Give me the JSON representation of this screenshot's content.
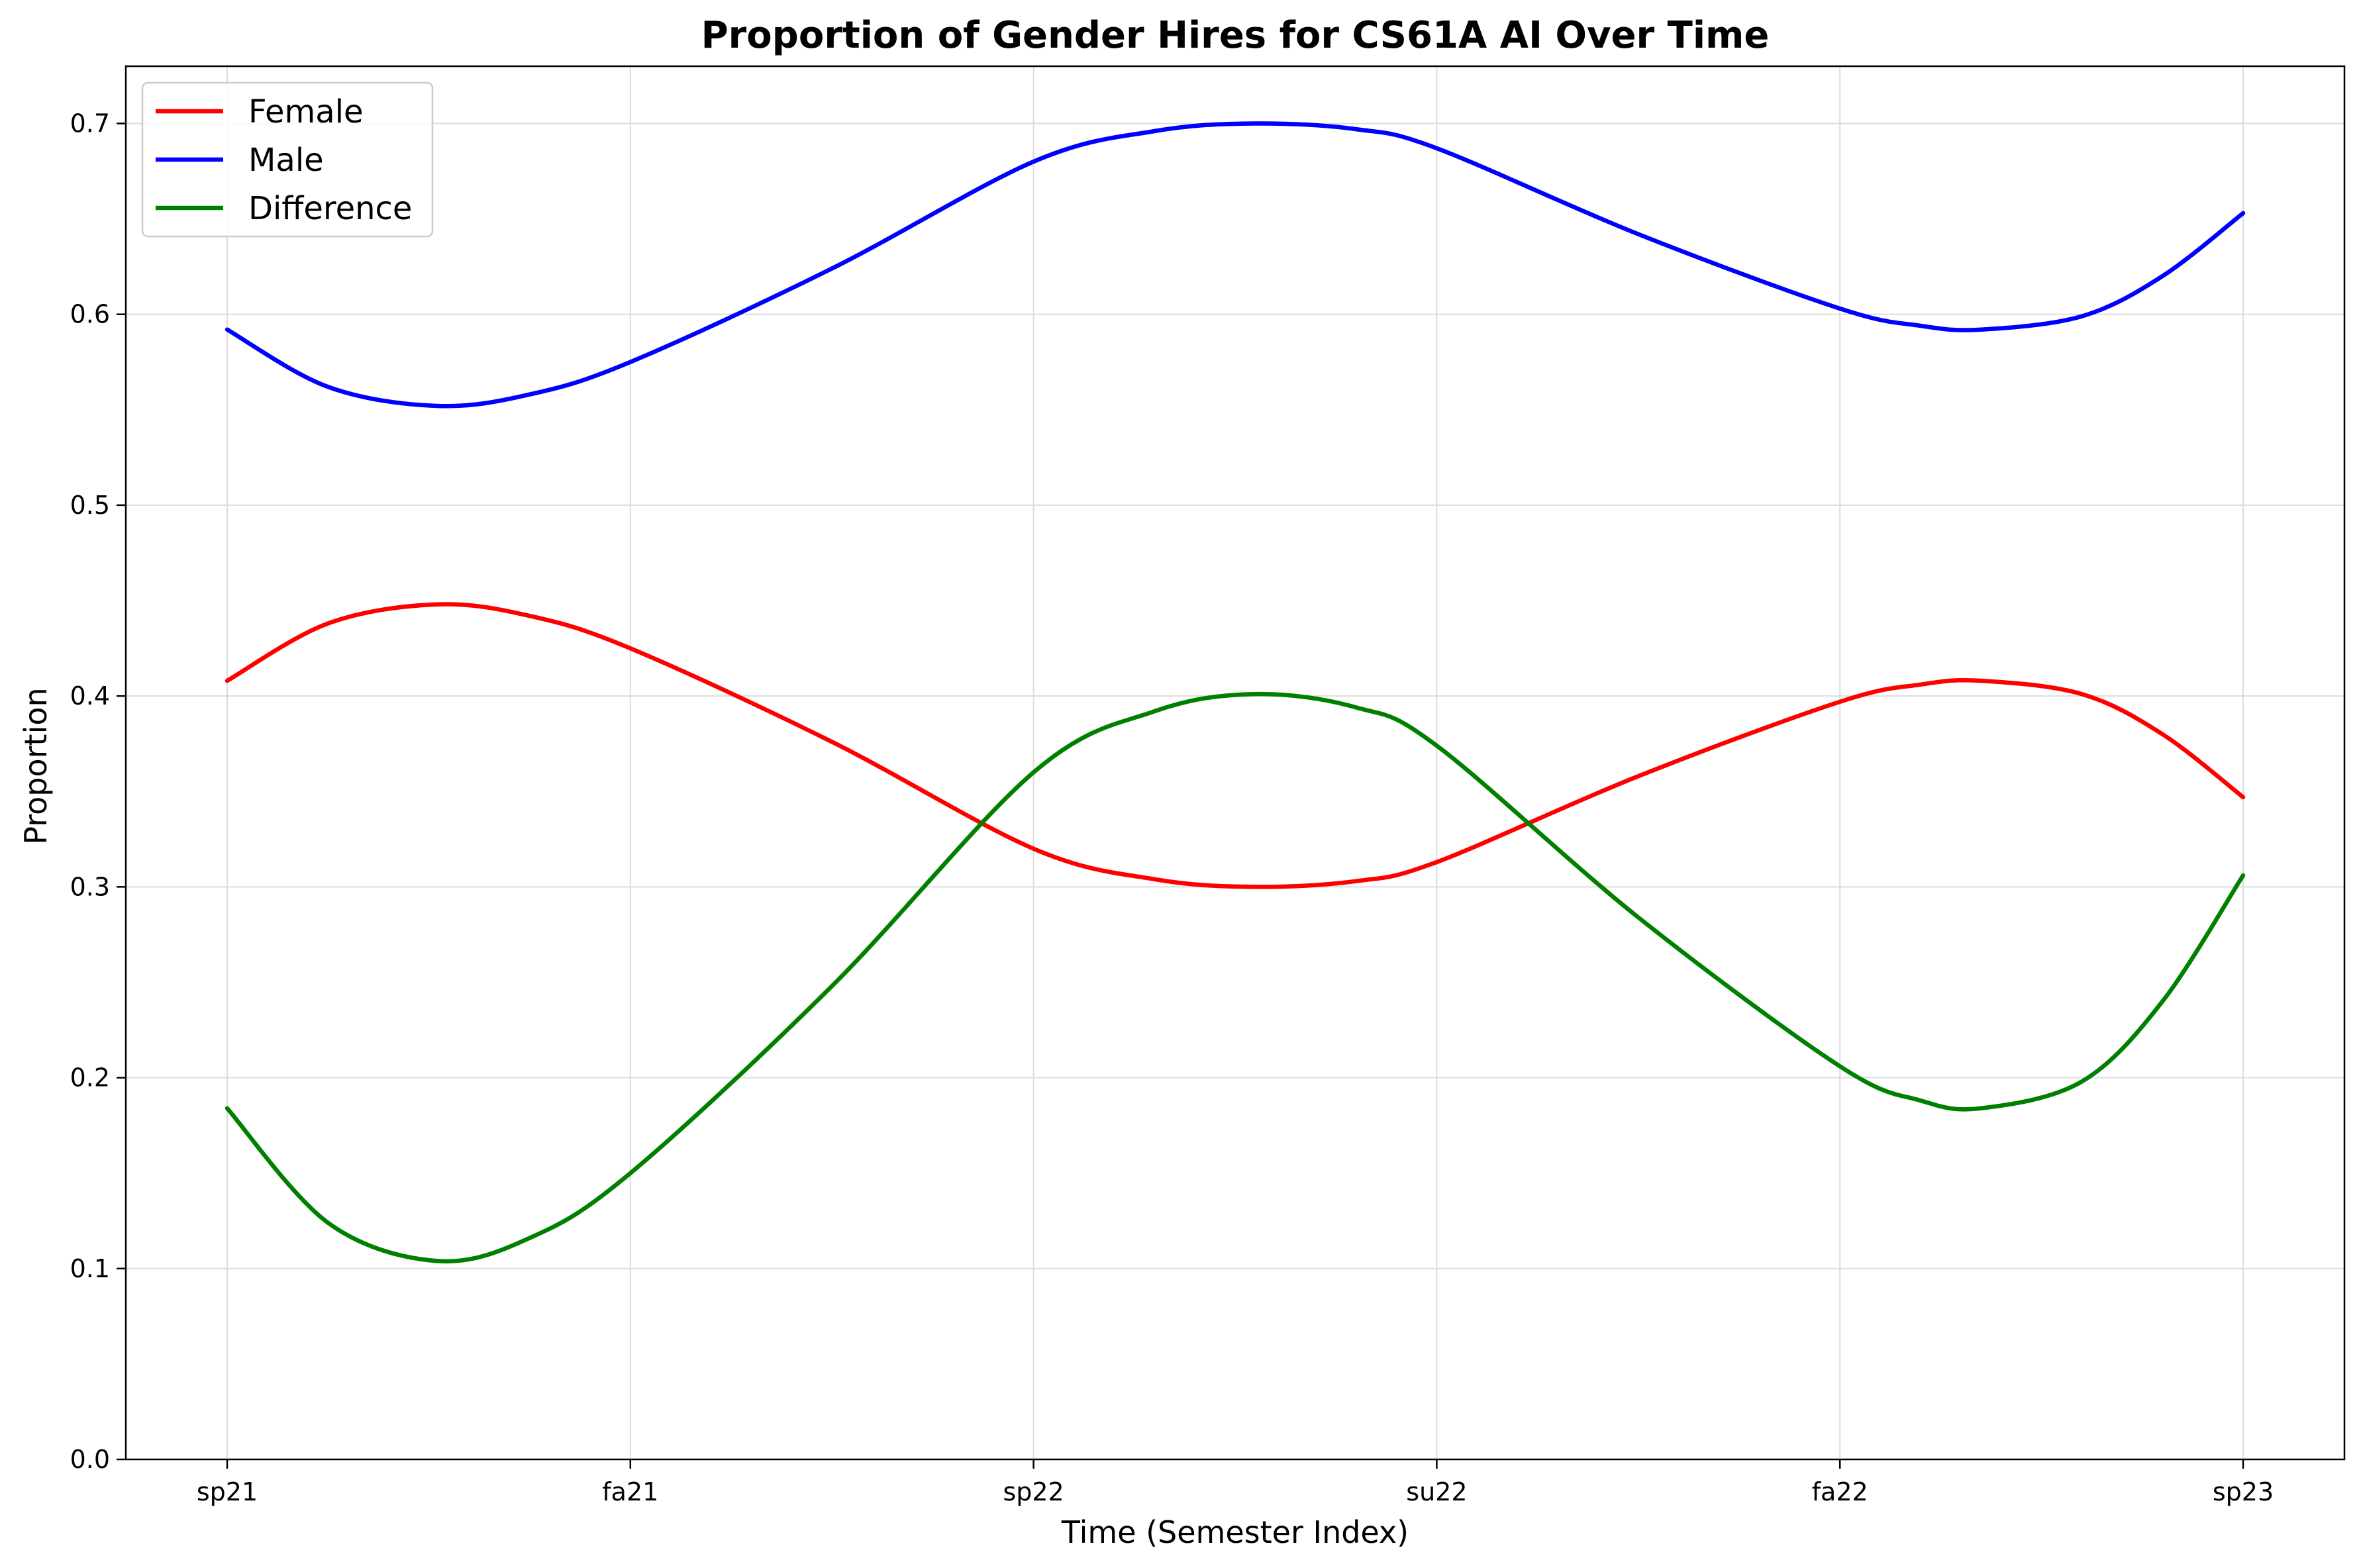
{
  "chart_data": {
    "type": "line",
    "title": "Proportion of Gender Hires for CS61A AI Over Time",
    "xlabel": "Time (Semester Index)",
    "ylabel": "Proportion",
    "categories": [
      "sp21",
      "fa21",
      "sp22",
      "su22",
      "fa22",
      "sp23"
    ],
    "x_index": [
      0,
      1,
      2,
      3,
      4,
      5
    ],
    "ylim": [
      0.0,
      0.73
    ],
    "yticks": [
      0.0,
      0.1,
      0.2,
      0.3,
      0.4,
      0.5,
      0.6,
      0.7
    ],
    "ytick_labels": [
      "0.0",
      "0.1",
      "0.2",
      "0.3",
      "0.4",
      "0.5",
      "0.6",
      "0.7"
    ],
    "grid": true,
    "legend_position": "top-left",
    "series": [
      {
        "name": "Female",
        "color": "#ff0000",
        "points": [
          [
            0,
            0.408
          ],
          [
            0.25,
            0.438
          ],
          [
            0.52,
            0.448
          ],
          [
            0.75,
            0.442
          ],
          [
            1.0,
            0.425
          ],
          [
            1.5,
            0.376
          ],
          [
            2.0,
            0.32
          ],
          [
            2.3,
            0.304
          ],
          [
            2.55,
            0.3
          ],
          [
            2.8,
            0.303
          ],
          [
            3.0,
            0.313
          ],
          [
            3.5,
            0.358
          ],
          [
            4.0,
            0.397
          ],
          [
            4.2,
            0.406
          ],
          [
            4.35,
            0.408
          ],
          [
            4.6,
            0.401
          ],
          [
            4.8,
            0.38
          ],
          [
            5.0,
            0.347
          ]
        ]
      },
      {
        "name": "Male",
        "color": "#0000ff",
        "points": [
          [
            0,
            0.592
          ],
          [
            0.25,
            0.562
          ],
          [
            0.52,
            0.552
          ],
          [
            0.75,
            0.558
          ],
          [
            1.0,
            0.575
          ],
          [
            1.5,
            0.624
          ],
          [
            2.0,
            0.68
          ],
          [
            2.3,
            0.696
          ],
          [
            2.55,
            0.7
          ],
          [
            2.8,
            0.697
          ],
          [
            3.0,
            0.687
          ],
          [
            3.5,
            0.642
          ],
          [
            4.0,
            0.603
          ],
          [
            4.2,
            0.594
          ],
          [
            4.35,
            0.592
          ],
          [
            4.6,
            0.599
          ],
          [
            4.8,
            0.62
          ],
          [
            5.0,
            0.653
          ]
        ]
      },
      {
        "name": "Difference",
        "color": "#008000",
        "points": [
          [
            0,
            0.184
          ],
          [
            0.25,
            0.124
          ],
          [
            0.52,
            0.104
          ],
          [
            0.75,
            0.116
          ],
          [
            1.0,
            0.15
          ],
          [
            1.5,
            0.248
          ],
          [
            2.0,
            0.36
          ],
          [
            2.3,
            0.392
          ],
          [
            2.55,
            0.401
          ],
          [
            2.8,
            0.394
          ],
          [
            3.0,
            0.374
          ],
          [
            3.5,
            0.284
          ],
          [
            4.0,
            0.206
          ],
          [
            4.2,
            0.188
          ],
          [
            4.35,
            0.184
          ],
          [
            4.6,
            0.198
          ],
          [
            4.8,
            0.24
          ],
          [
            5.0,
            0.306
          ]
        ]
      }
    ]
  }
}
